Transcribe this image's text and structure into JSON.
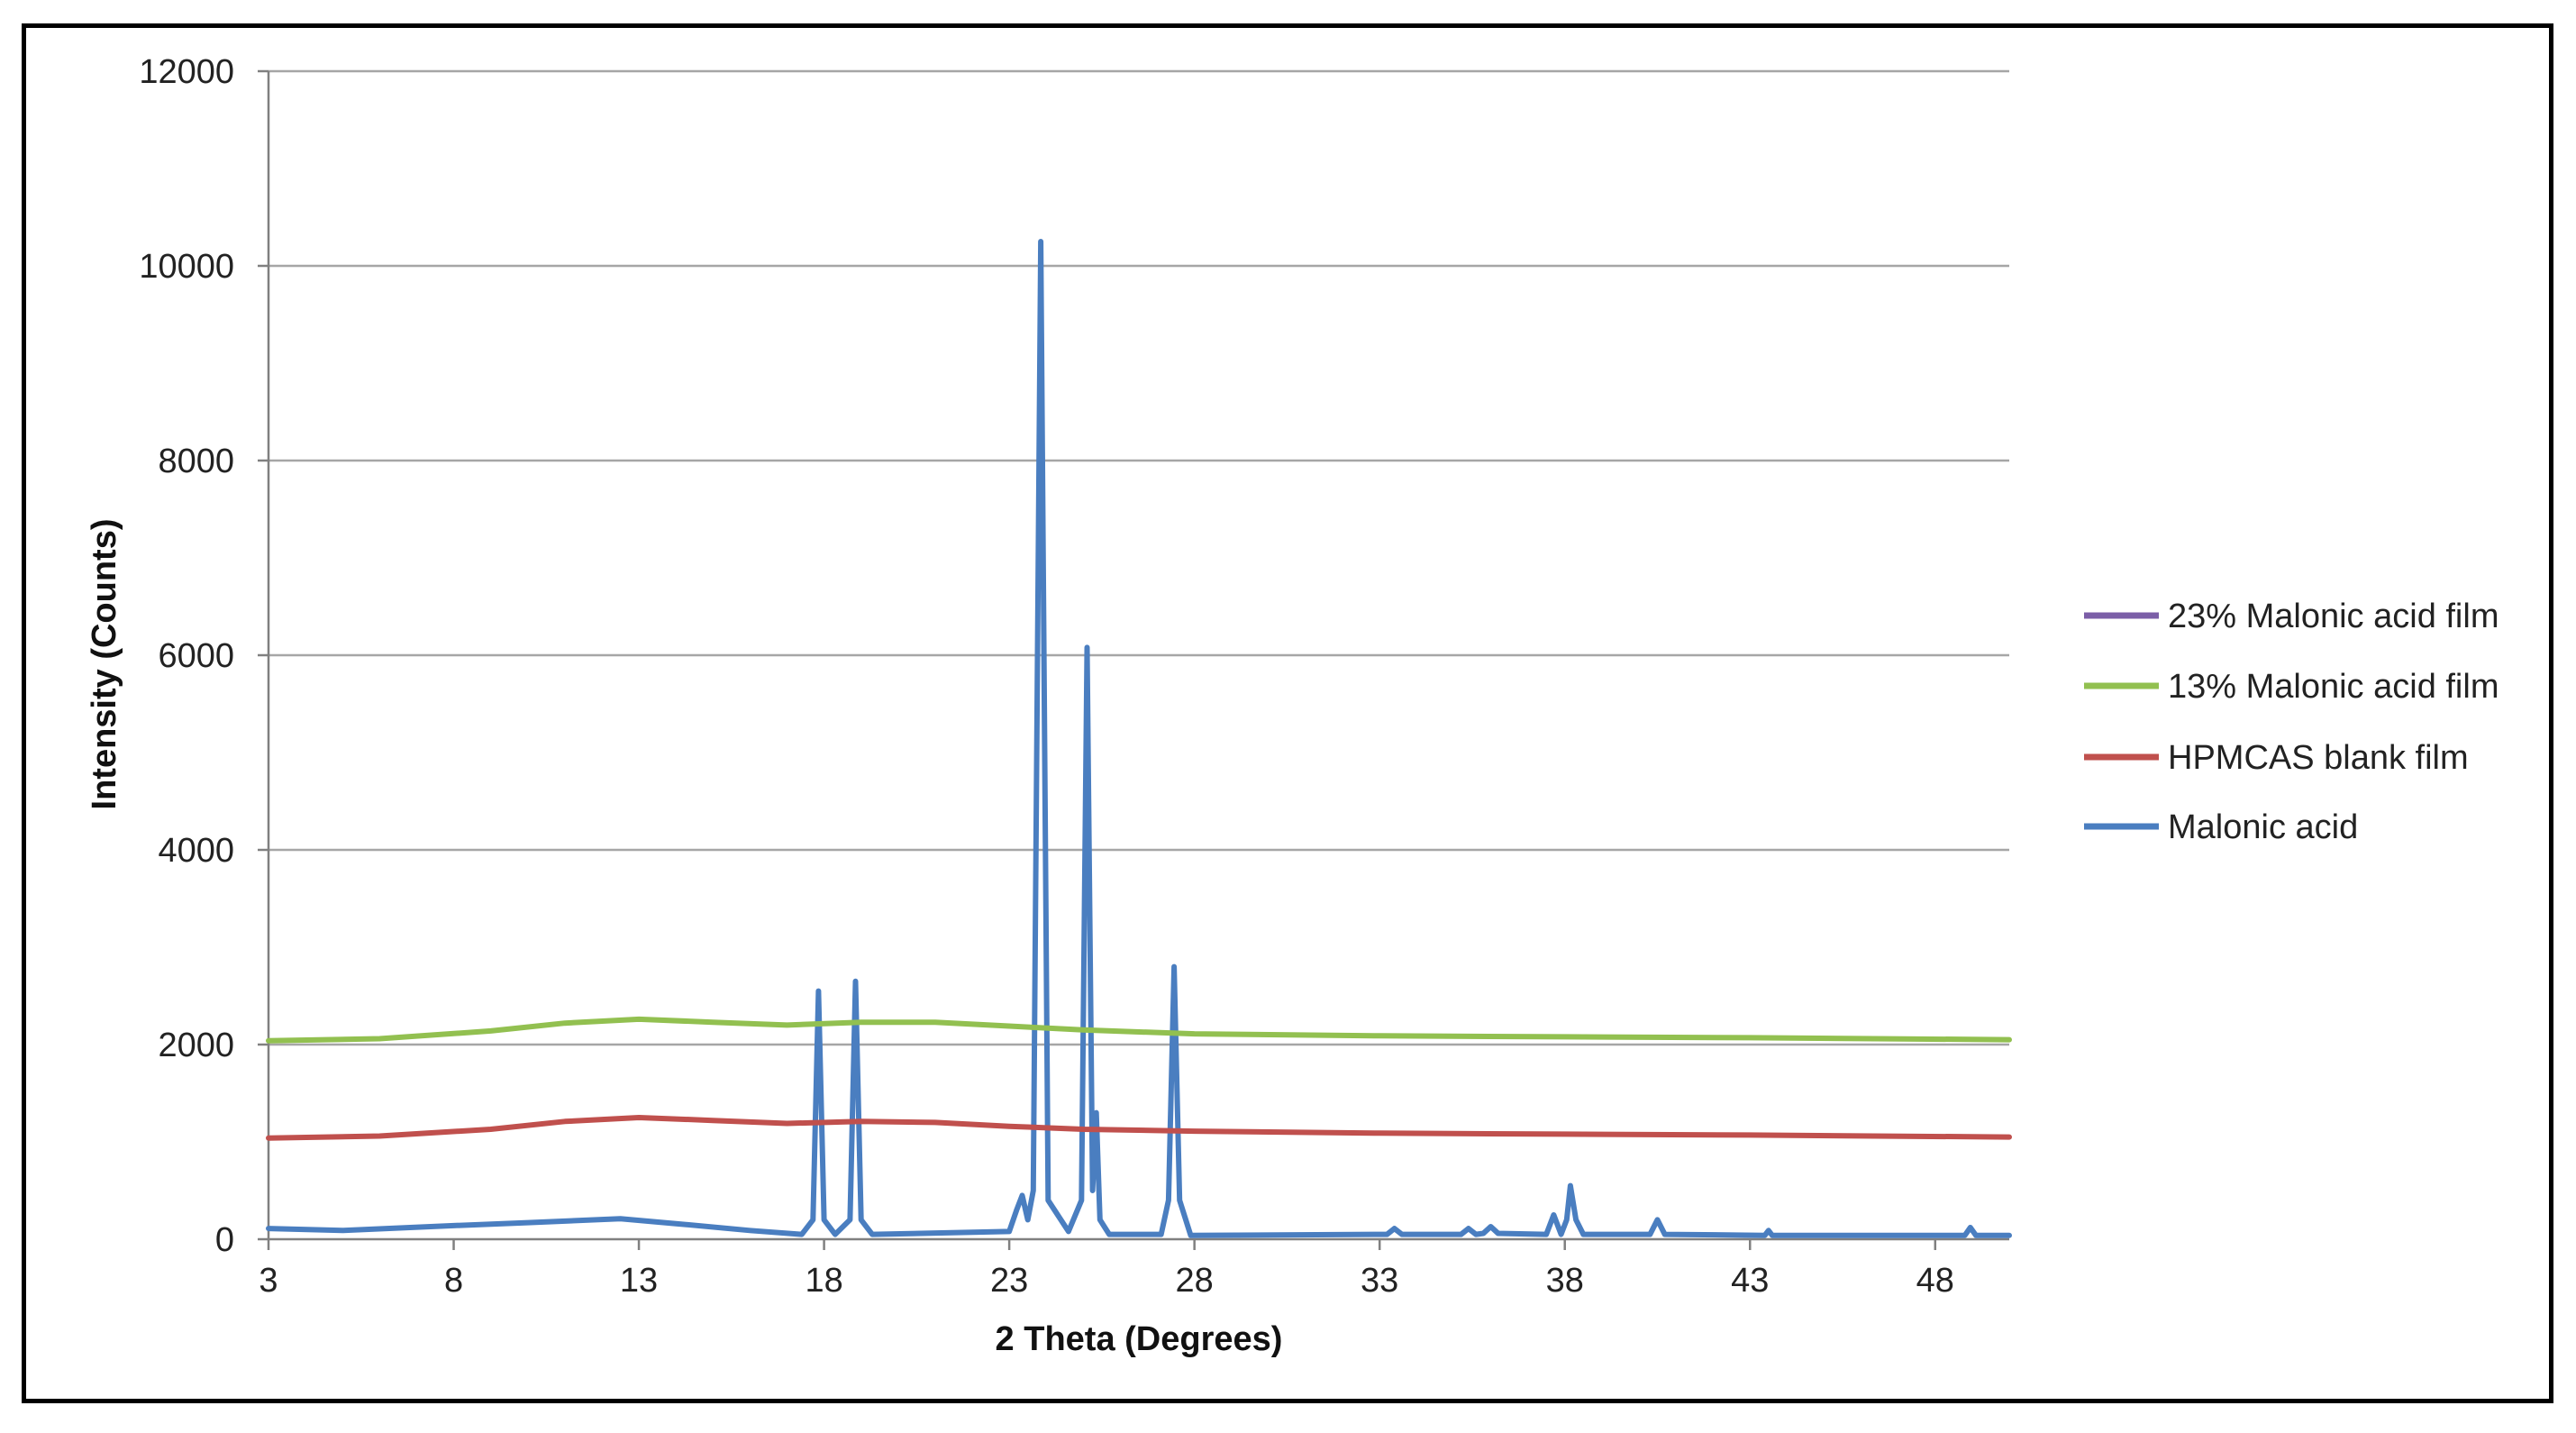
{
  "chart_data": {
    "type": "line",
    "title": "",
    "xlabel": "2 Theta (Degrees)",
    "ylabel": "Intensity (Counts)",
    "xlim": [
      3,
      50
    ],
    "ylim": [
      0,
      12000
    ],
    "xticks": [
      3,
      8,
      13,
      18,
      23,
      28,
      33,
      38,
      43,
      48
    ],
    "yticks": [
      0,
      2000,
      4000,
      6000,
      8000,
      10000,
      12000
    ],
    "grid": "horizontal",
    "legend_position": "right",
    "series": [
      {
        "name": "23% Malonic acid film",
        "color": "#7B5EA7",
        "points": []
      },
      {
        "name": "13% Malonic acid film",
        "color": "#92C050",
        "points": [
          [
            3,
            2040
          ],
          [
            6,
            2060
          ],
          [
            9,
            2140
          ],
          [
            11,
            2220
          ],
          [
            13,
            2260
          ],
          [
            15,
            2230
          ],
          [
            17,
            2200
          ],
          [
            19,
            2230
          ],
          [
            21,
            2230
          ],
          [
            23,
            2190
          ],
          [
            25,
            2150
          ],
          [
            28,
            2110
          ],
          [
            33,
            2090
          ],
          [
            38,
            2080
          ],
          [
            43,
            2070
          ],
          [
            50,
            2050
          ]
        ]
      },
      {
        "name": "HPMCAS blank film",
        "color": "#C0504D",
        "points": [
          [
            3,
            1040
          ],
          [
            6,
            1060
          ],
          [
            9,
            1130
          ],
          [
            11,
            1210
          ],
          [
            13,
            1250
          ],
          [
            15,
            1220
          ],
          [
            17,
            1190
          ],
          [
            19,
            1210
          ],
          [
            21,
            1200
          ],
          [
            23,
            1160
          ],
          [
            25,
            1130
          ],
          [
            28,
            1110
          ],
          [
            33,
            1090
          ],
          [
            38,
            1080
          ],
          [
            43,
            1070
          ],
          [
            50,
            1050
          ]
        ]
      },
      {
        "name": "Malonic acid",
        "color": "#4A7EC0",
        "points": [
          [
            3,
            110
          ],
          [
            5,
            90
          ],
          [
            8,
            140
          ],
          [
            10,
            170
          ],
          [
            12.5,
            210
          ],
          [
            14,
            160
          ],
          [
            16,
            90
          ],
          [
            17.4,
            50
          ],
          [
            17.7,
            200
          ],
          [
            17.85,
            2550
          ],
          [
            18.0,
            200
          ],
          [
            18.3,
            50
          ],
          [
            18.7,
            200
          ],
          [
            18.85,
            2650
          ],
          [
            19.0,
            200
          ],
          [
            19.3,
            50
          ],
          [
            23.0,
            80
          ],
          [
            23.2,
            300
          ],
          [
            23.35,
            450
          ],
          [
            23.5,
            200
          ],
          [
            23.65,
            500
          ],
          [
            23.85,
            10250
          ],
          [
            24.05,
            400
          ],
          [
            24.6,
            80
          ],
          [
            24.95,
            400
          ],
          [
            25.1,
            6080
          ],
          [
            25.25,
            500
          ],
          [
            25.35,
            1300
          ],
          [
            25.45,
            200
          ],
          [
            25.7,
            50
          ],
          [
            27.1,
            50
          ],
          [
            27.3,
            400
          ],
          [
            27.45,
            2800
          ],
          [
            27.6,
            400
          ],
          [
            27.9,
            40
          ],
          [
            33.2,
            50
          ],
          [
            33.4,
            110
          ],
          [
            33.6,
            50
          ],
          [
            35.2,
            50
          ],
          [
            35.4,
            110
          ],
          [
            35.6,
            50
          ],
          [
            35.8,
            60
          ],
          [
            36.0,
            130
          ],
          [
            36.2,
            60
          ],
          [
            37.5,
            50
          ],
          [
            37.7,
            250
          ],
          [
            37.9,
            50
          ],
          [
            38.05,
            200
          ],
          [
            38.15,
            550
          ],
          [
            38.3,
            200
          ],
          [
            38.5,
            50
          ],
          [
            40.3,
            50
          ],
          [
            40.5,
            200
          ],
          [
            40.7,
            50
          ],
          [
            43.4,
            40
          ],
          [
            43.5,
            90
          ],
          [
            43.6,
            40
          ],
          [
            48.8,
            40
          ],
          [
            48.95,
            120
          ],
          [
            49.1,
            40
          ],
          [
            50,
            40
          ]
        ]
      }
    ]
  }
}
